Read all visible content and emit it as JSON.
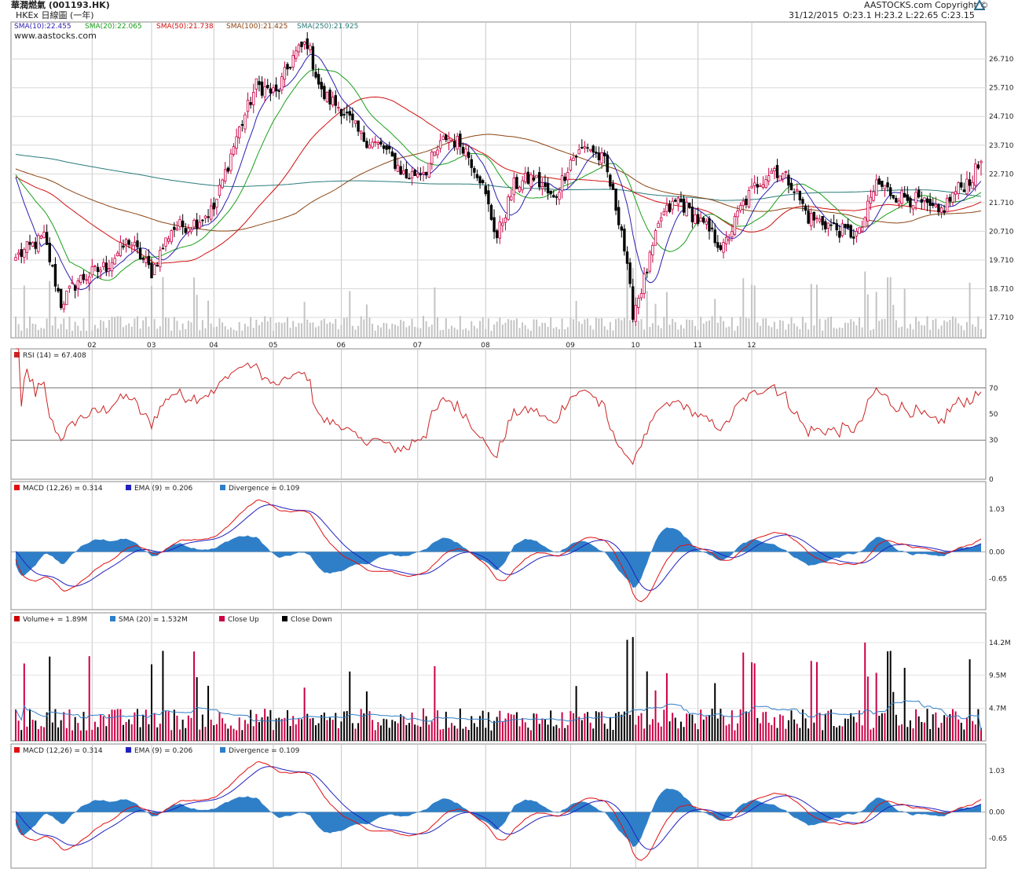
{
  "header": {
    "title": "華潤燃氣 (001193.HK)",
    "subtitle": "HKEx 日線圖 (一年)",
    "copyright": "AASTOCKS.com Copyright ©",
    "watermark": "www.aastocks.com",
    "date": "31/12/2015",
    "ohlc": "O:23.1  H:23.2  L:22.65  C:23.15"
  },
  "colors": {
    "candle_up": "#cc0044",
    "candle_down": "#000000",
    "sma10": "#2b1fb0",
    "sma20": "#1aa01a",
    "sma50": "#d21010",
    "sma100": "#8b4513",
    "sma250": "#2a7a7a",
    "macd": "#e01010",
    "ema": "#2020c0",
    "divergence": "#2f7fc8",
    "rsi": "#cc2222",
    "volume_sma": "#2f7fc8"
  },
  "chart_data": [
    {
      "type": "candlestick",
      "panel": "price",
      "legend": [
        "SMA(10):22.455",
        "SMA(20):22.065",
        "SMA(50):21.738",
        "SMA(100):21.425",
        "SMA(250):21.925"
      ],
      "months": [
        "02",
        "03",
        "04",
        "05",
        "06",
        "07",
        "08",
        "09",
        "10",
        "11",
        "12"
      ],
      "y_ticks": [
        17.71,
        18.71,
        19.71,
        20.71,
        21.71,
        22.71,
        23.71,
        24.71,
        25.71,
        26.71
      ],
      "ylim": [
        17.0,
        28.0
      ],
      "anchors_close": [
        [
          0,
          19.8
        ],
        [
          10,
          20.5
        ],
        [
          16,
          18.2
        ],
        [
          22,
          19.0
        ],
        [
          32,
          19.5
        ],
        [
          40,
          20.4
        ],
        [
          48,
          19.3
        ],
        [
          55,
          20.8
        ],
        [
          63,
          21.0
        ],
        [
          70,
          21.5
        ],
        [
          78,
          24.0
        ],
        [
          85,
          25.8
        ],
        [
          92,
          25.5
        ],
        [
          98,
          26.8
        ],
        [
          103,
          27.3
        ],
        [
          108,
          25.5
        ],
        [
          115,
          25.0
        ],
        [
          122,
          24.0
        ],
        [
          130,
          23.6
        ],
        [
          138,
          22.6
        ],
        [
          145,
          22.9
        ],
        [
          152,
          24.0
        ],
        [
          158,
          23.7
        ],
        [
          164,
          22.6
        ],
        [
          170,
          20.5
        ],
        [
          176,
          22.3
        ],
        [
          183,
          22.6
        ],
        [
          190,
          21.8
        ],
        [
          196,
          23.2
        ],
        [
          202,
          23.7
        ],
        [
          208,
          23.1
        ],
        [
          214,
          20.8
        ],
        [
          218,
          17.9
        ],
        [
          222,
          19.0
        ],
        [
          228,
          21.2
        ],
        [
          234,
          21.8
        ],
        [
          240,
          21.2
        ],
        [
          246,
          20.6
        ],
        [
          250,
          20.1
        ],
        [
          256,
          21.5
        ],
        [
          262,
          22.4
        ],
        [
          268,
          22.9
        ],
        [
          274,
          22.4
        ],
        [
          280,
          21.2
        ],
        [
          286,
          21.0
        ],
        [
          292,
          20.7
        ],
        [
          298,
          20.6
        ],
        [
          304,
          22.4
        ],
        [
          310,
          22.0
        ],
        [
          318,
          21.8
        ],
        [
          326,
          21.3
        ],
        [
          332,
          22.1
        ],
        [
          338,
          22.6
        ],
        [
          341,
          23.15
        ]
      ],
      "sma_end": {
        "sma10": 22.455,
        "sma20": 22.065,
        "sma50": 21.738,
        "sma100": 21.425,
        "sma250": 21.925
      }
    },
    {
      "type": "line",
      "panel": "rsi",
      "legend": "RSI (14) = 67.408",
      "y_ticks": [
        0,
        30,
        50,
        70
      ],
      "ylim": [
        0,
        100
      ],
      "reference_lines": [
        30,
        70
      ]
    },
    {
      "type": "macd",
      "panel": "macd1",
      "legend": [
        "MACD (12,26) = 0.314",
        "EMA (9) = 0.206",
        "Divergence = 0.109"
      ],
      "y_ticks": [
        -0.65,
        0.0,
        1.03
      ],
      "ylim": [
        -1.4,
        1.7
      ]
    },
    {
      "type": "bar",
      "panel": "volume",
      "legend": [
        "Volume+ = 1.89M",
        "SMA (20) = 1.532M",
        "Close Up",
        "Close Down"
      ],
      "y_ticks": [
        "4.7M",
        "9.5M",
        "14.2M"
      ],
      "y_tick_values": [
        4.7,
        9.5,
        14.2
      ],
      "ylim": [
        0,
        18.5
      ],
      "last_volume": 1.89,
      "last_sma": 1.532
    },
    {
      "type": "macd",
      "panel": "macd2",
      "legend": [
        "MACD (12,26) = 0.314",
        "EMA (9) = 0.206",
        "Divergence = 0.109"
      ],
      "y_ticks": [
        -0.65,
        0.0,
        1.03
      ],
      "ylim": [
        -1.4,
        1.7
      ]
    }
  ]
}
